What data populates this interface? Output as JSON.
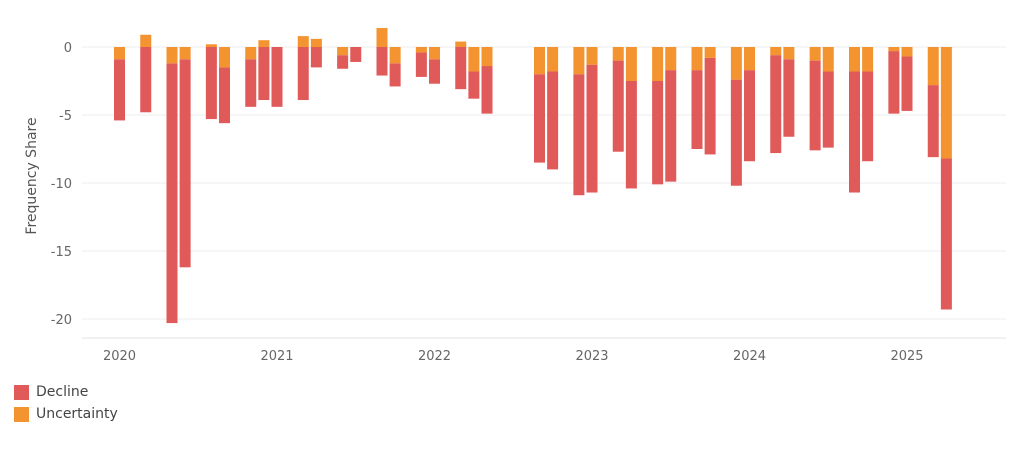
{
  "chart_data": {
    "type": "bar",
    "stacked": true,
    "ylabel": "Frequency Share",
    "xlabel": "",
    "ylim": [
      -21,
      2.5
    ],
    "yticks": [
      0,
      -5,
      -10,
      -15,
      -20
    ],
    "xticks": [
      "2020",
      "2021",
      "2022",
      "2023",
      "2024",
      "2025"
    ],
    "grid": true,
    "legend_position": "bottom-left",
    "series": [
      {
        "name": "Decline",
        "color": "#E05A5A"
      },
      {
        "name": "Uncertainty",
        "color": "#F39430"
      }
    ],
    "points": [
      {
        "date": "2020-01",
        "decline": -4.5,
        "uncertainty": -0.9
      },
      {
        "date": "2020-03",
        "decline": -4.8,
        "uncertainty": 0.9
      },
      {
        "date": "2020-05",
        "decline": -19.1,
        "uncertainty": -1.2
      },
      {
        "date": "2020-06",
        "decline": -15.3,
        "uncertainty": -0.9
      },
      {
        "date": "2020-08",
        "decline": -5.3,
        "uncertainty": 0.2
      },
      {
        "date": "2020-09",
        "decline": -4.1,
        "uncertainty": -1.5
      },
      {
        "date": "2020-11",
        "decline": -3.5,
        "uncertainty": -0.9
      },
      {
        "date": "2020-12",
        "decline": -3.9,
        "uncertainty": 0.5
      },
      {
        "date": "2021-01",
        "decline": -4.4,
        "uncertainty": 0
      },
      {
        "date": "2021-03",
        "decline": -3.9,
        "uncertainty": 0.8
      },
      {
        "date": "2021-04",
        "decline": -1.5,
        "uncertainty": 0.6
      },
      {
        "date": "2021-06",
        "decline": -1.0,
        "uncertainty": -0.6
      },
      {
        "date": "2021-07",
        "decline": -1.1,
        "uncertainty": 0
      },
      {
        "date": "2021-09",
        "decline": -2.1,
        "uncertainty": 1.4
      },
      {
        "date": "2021-10",
        "decline": -1.7,
        "uncertainty": -1.2
      },
      {
        "date": "2021-12",
        "decline": -1.8,
        "uncertainty": -0.4
      },
      {
        "date": "2022-01",
        "decline": -1.8,
        "uncertainty": -0.9
      },
      {
        "date": "2022-03",
        "decline": -3.1,
        "uncertainty": 0.4
      },
      {
        "date": "2022-04",
        "decline": -2.0,
        "uncertainty": -1.8
      },
      {
        "date": "2022-05",
        "decline": -3.5,
        "uncertainty": -1.4
      },
      {
        "date": "2022-09",
        "decline": -6.5,
        "uncertainty": -2.0
      },
      {
        "date": "2022-10",
        "decline": -7.2,
        "uncertainty": -1.8
      },
      {
        "date": "2022-12",
        "decline": -8.9,
        "uncertainty": -2.0
      },
      {
        "date": "2023-01",
        "decline": -9.4,
        "uncertainty": -1.3
      },
      {
        "date": "2023-03",
        "decline": -6.7,
        "uncertainty": -1.0
      },
      {
        "date": "2023-04",
        "decline": -7.9,
        "uncertainty": -2.5
      },
      {
        "date": "2023-06",
        "decline": -7.6,
        "uncertainty": -2.5
      },
      {
        "date": "2023-07",
        "decline": -8.2,
        "uncertainty": -1.7
      },
      {
        "date": "2023-09",
        "decline": -5.8,
        "uncertainty": -1.7
      },
      {
        "date": "2023-10",
        "decline": -7.1,
        "uncertainty": -0.8
      },
      {
        "date": "2023-12",
        "decline": -7.8,
        "uncertainty": -2.4
      },
      {
        "date": "2024-01",
        "decline": -6.7,
        "uncertainty": -1.7
      },
      {
        "date": "2024-03",
        "decline": -7.2,
        "uncertainty": -0.6
      },
      {
        "date": "2024-04",
        "decline": -5.7,
        "uncertainty": -0.9
      },
      {
        "date": "2024-06",
        "decline": -6.6,
        "uncertainty": -1.0
      },
      {
        "date": "2024-07",
        "decline": -5.6,
        "uncertainty": -1.8
      },
      {
        "date": "2024-09",
        "decline": -8.9,
        "uncertainty": -1.8
      },
      {
        "date": "2024-10",
        "decline": -6.6,
        "uncertainty": -1.8
      },
      {
        "date": "2024-12",
        "decline": -4.6,
        "uncertainty": -0.3
      },
      {
        "date": "2025-01",
        "decline": -4.0,
        "uncertainty": -0.7
      },
      {
        "date": "2025-03",
        "decline": -5.3,
        "uncertainty": -2.8
      },
      {
        "date": "2025-04",
        "decline": -11.1,
        "uncertainty": -8.2
      }
    ]
  }
}
